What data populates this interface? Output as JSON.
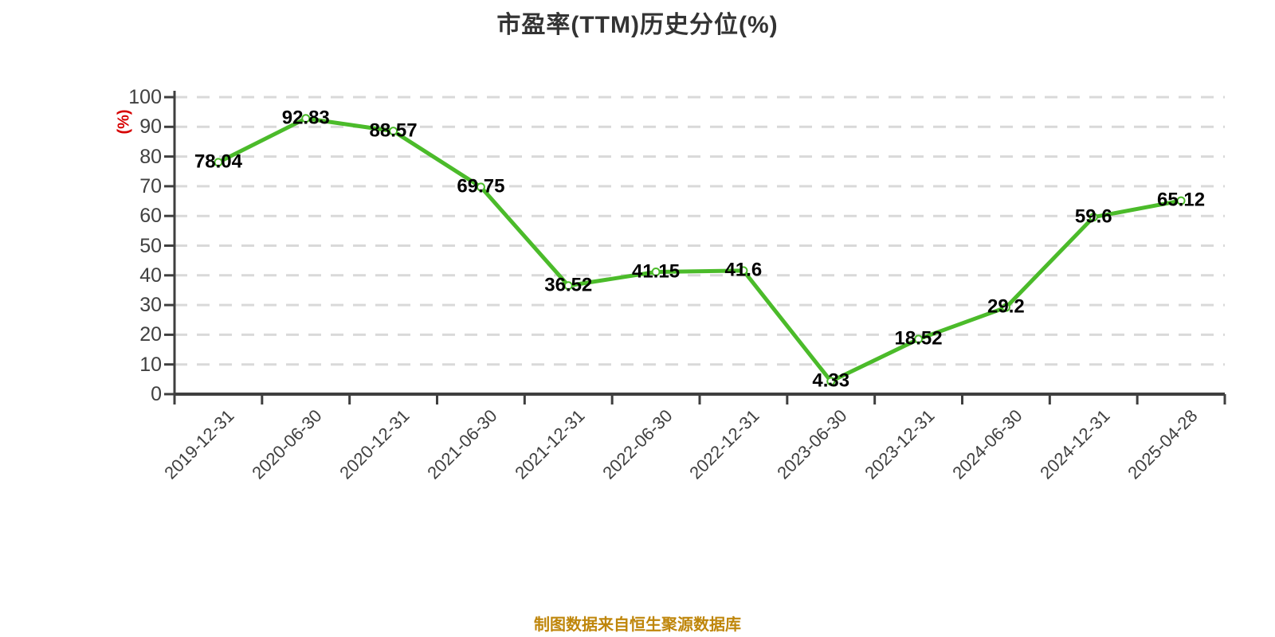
{
  "chart_data": {
    "type": "line",
    "title": "市盈率(TTM)历史分位(%)",
    "ylabel": "(%)",
    "xlabel": "",
    "footer": "制图数据来自恒生聚源数据库",
    "categories": [
      "2019-12-31",
      "2020-06-30",
      "2020-12-31",
      "2021-06-30",
      "2021-12-31",
      "2022-06-30",
      "2022-12-31",
      "2023-06-30",
      "2023-12-31",
      "2024-06-30",
      "2024-12-31",
      "2025-04-28"
    ],
    "values": [
      78.04,
      92.83,
      88.57,
      69.75,
      36.52,
      41.15,
      41.6,
      4.33,
      18.52,
      29.2,
      59.6,
      65.12
    ],
    "ylim": [
      0,
      100
    ],
    "ytick_interval": 10,
    "grid": "horizontal dashed gridlines",
    "legend_position": "none",
    "point_labels_visible": true
  },
  "colors": {
    "title": "#333333",
    "axis": "#3f3f3f",
    "tick_label": "#404040",
    "grid": "#d9d9d9",
    "line": "#4bbb2a",
    "marker_fill": "#ffffff",
    "data_label": "#000000",
    "y_unit": "#d60000",
    "footer": "#bf860b",
    "background": "#ffffff"
  }
}
